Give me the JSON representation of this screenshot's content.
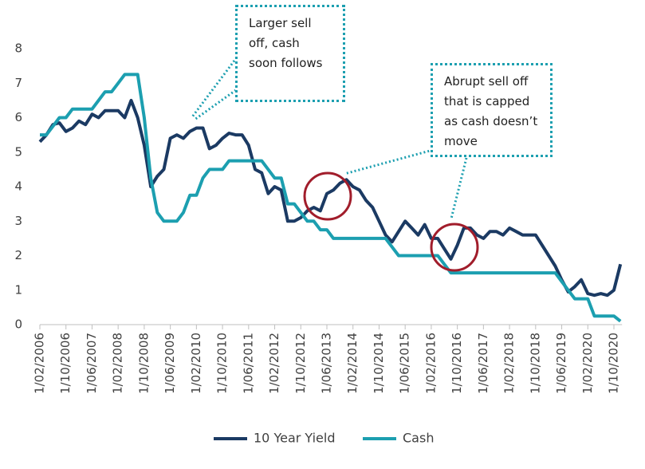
{
  "chart_data": {
    "type": "line",
    "categories": [
      "1/02/2006",
      null,
      null,
      null,
      "1/10/2006",
      null,
      null,
      null,
      "1/06/2007",
      null,
      null,
      null,
      "1/02/2008",
      null,
      null,
      null,
      "1/10/2008",
      null,
      null,
      null,
      "1/06/2009",
      null,
      null,
      null,
      "1/02/2010",
      null,
      null,
      null,
      "1/10/2010",
      null,
      null,
      null,
      "1/06/2011",
      null,
      null,
      null,
      "1/02/2012",
      null,
      null,
      null,
      "1/10/2012",
      null,
      null,
      null,
      "1/06/2013",
      null,
      null,
      null,
      "1/02/2014",
      null,
      null,
      null,
      "1/10/2014",
      null,
      null,
      null,
      "1/06/2015",
      null,
      null,
      null,
      "1/02/2016",
      null,
      null,
      null,
      "1/10/2016",
      null,
      null,
      null,
      "1/06/2017",
      null,
      null,
      null,
      "1/02/2018",
      null,
      null,
      null,
      "1/10/2018",
      null,
      null,
      null,
      "1/06/2019",
      null,
      null,
      null,
      "1/02/2020",
      null,
      null,
      null,
      "1/10/2020",
      null
    ],
    "series": [
      {
        "name": "10 Year Yield",
        "color": "#1b3a63",
        "values": [
          5.3,
          5.5,
          5.8,
          5.85,
          5.6,
          5.7,
          5.9,
          5.8,
          6.1,
          6.0,
          6.2,
          6.2,
          6.2,
          6.0,
          6.5,
          6.0,
          5.2,
          4.0,
          4.3,
          4.5,
          5.4,
          5.5,
          5.4,
          5.6,
          5.7,
          5.7,
          5.1,
          5.2,
          5.4,
          5.55,
          5.5,
          5.5,
          5.2,
          4.5,
          4.4,
          3.8,
          4.0,
          3.9,
          3.0,
          3.0,
          3.1,
          3.3,
          3.4,
          3.3,
          3.8,
          3.9,
          4.1,
          4.2,
          4.0,
          3.9,
          3.6,
          3.4,
          3.0,
          2.6,
          2.4,
          2.7,
          3.0,
          2.8,
          2.6,
          2.9,
          2.5,
          2.5,
          2.2,
          1.9,
          2.3,
          2.8,
          2.8,
          2.6,
          2.5,
          2.7,
          2.7,
          2.6,
          2.8,
          2.7,
          2.6,
          2.6,
          2.6,
          2.3,
          2.0,
          1.7,
          1.3,
          0.95,
          1.1,
          1.3,
          0.9,
          0.85,
          0.9,
          0.85,
          1.0,
          1.75
        ]
      },
      {
        "name": "Cash",
        "color": "#1c9fb0",
        "values": [
          5.5,
          5.5,
          5.75,
          6.0,
          6.0,
          6.25,
          6.25,
          6.25,
          6.25,
          6.5,
          6.75,
          6.75,
          7.0,
          7.25,
          7.25,
          7.25,
          6.0,
          4.25,
          3.25,
          3.0,
          3.0,
          3.0,
          3.25,
          3.75,
          3.75,
          4.25,
          4.5,
          4.5,
          4.5,
          4.75,
          4.75,
          4.75,
          4.75,
          4.75,
          4.75,
          4.5,
          4.25,
          4.25,
          3.5,
          3.5,
          3.25,
          3.0,
          3.0,
          2.75,
          2.75,
          2.5,
          2.5,
          2.5,
          2.5,
          2.5,
          2.5,
          2.5,
          2.5,
          2.5,
          2.25,
          2.0,
          2.0,
          2.0,
          2.0,
          2.0,
          2.0,
          2.0,
          1.75,
          1.5,
          1.5,
          1.5,
          1.5,
          1.5,
          1.5,
          1.5,
          1.5,
          1.5,
          1.5,
          1.5,
          1.5,
          1.5,
          1.5,
          1.5,
          1.5,
          1.5,
          1.25,
          1.0,
          0.75,
          0.75,
          0.75,
          0.25,
          0.25,
          0.25,
          0.25,
          0.1
        ]
      }
    ],
    "ylim": [
      0,
      8
    ],
    "yticks": [
      0,
      1,
      2,
      3,
      4,
      5,
      6,
      7,
      8
    ],
    "grid": false,
    "legend": "bottom",
    "annotations": [
      "Larger sell off, cash soon follows",
      "Abrupt sell off that is capped as cash doesn’t move"
    ]
  }
}
